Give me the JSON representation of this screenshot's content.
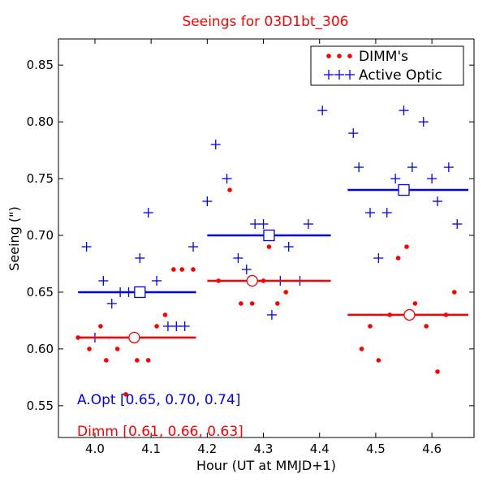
{
  "chart_data": {
    "type": "scatter",
    "title": "Seeings for 03D1bt_306",
    "xlabel": "Hour (UT at MMJD+1)",
    "ylabel": "Seeing (\")",
    "xlim": [
      3.935,
      4.675
    ],
    "ylim": [
      0.522,
      0.873
    ],
    "x_ticks": [
      "4.0",
      "4.1",
      "4.2",
      "4.3",
      "4.4",
      "4.5",
      "4.6"
    ],
    "y_ticks": [
      "0.55",
      "0.60",
      "0.65",
      "0.70",
      "0.75",
      "0.80",
      "0.85"
    ],
    "grid": false,
    "legend_position": "top-right",
    "colors": {
      "dimm": "#ff0000",
      "active_optic": "#0000ff"
    },
    "series": [
      {
        "name": "DIMM's",
        "marker": "dot",
        "color": "#ff0000",
        "points": [
          [
            3.97,
            0.61
          ],
          [
            3.99,
            0.6
          ],
          [
            4.01,
            0.62
          ],
          [
            4.02,
            0.59
          ],
          [
            4.04,
            0.6
          ],
          [
            4.055,
            0.56
          ],
          [
            4.075,
            0.59
          ],
          [
            4.095,
            0.59
          ],
          [
            4.11,
            0.62
          ],
          [
            4.125,
            0.63
          ],
          [
            4.14,
            0.67
          ],
          [
            4.155,
            0.67
          ],
          [
            4.175,
            0.67
          ],
          [
            4.22,
            0.66
          ],
          [
            4.24,
            0.74
          ],
          [
            4.26,
            0.64
          ],
          [
            4.28,
            0.64
          ],
          [
            4.3,
            0.66
          ],
          [
            4.31,
            0.69
          ],
          [
            4.325,
            0.64
          ],
          [
            4.34,
            0.65
          ],
          [
            4.475,
            0.6
          ],
          [
            4.49,
            0.62
          ],
          [
            4.505,
            0.59
          ],
          [
            4.525,
            0.63
          ],
          [
            4.54,
            0.68
          ],
          [
            4.555,
            0.69
          ],
          [
            4.57,
            0.64
          ],
          [
            4.59,
            0.62
          ],
          [
            4.61,
            0.58
          ],
          [
            4.625,
            0.63
          ],
          [
            4.64,
            0.65
          ]
        ]
      },
      {
        "name": "Active Optic",
        "marker": "plus",
        "color": "#0000ff",
        "points": [
          [
            3.985,
            0.69
          ],
          [
            4.0,
            0.61
          ],
          [
            4.015,
            0.66
          ],
          [
            4.03,
            0.64
          ],
          [
            4.045,
            0.65
          ],
          [
            4.06,
            0.65
          ],
          [
            4.08,
            0.68
          ],
          [
            4.095,
            0.72
          ],
          [
            4.11,
            0.66
          ],
          [
            4.13,
            0.62
          ],
          [
            4.145,
            0.62
          ],
          [
            4.16,
            0.62
          ],
          [
            4.175,
            0.69
          ],
          [
            4.2,
            0.73
          ],
          [
            4.215,
            0.78
          ],
          [
            4.235,
            0.75
          ],
          [
            4.255,
            0.68
          ],
          [
            4.27,
            0.67
          ],
          [
            4.285,
            0.71
          ],
          [
            4.3,
            0.71
          ],
          [
            4.315,
            0.63
          ],
          [
            4.33,
            0.66
          ],
          [
            4.345,
            0.69
          ],
          [
            4.365,
            0.66
          ],
          [
            4.38,
            0.71
          ],
          [
            4.405,
            0.81
          ],
          [
            4.46,
            0.79
          ],
          [
            4.47,
            0.76
          ],
          [
            4.49,
            0.72
          ],
          [
            4.505,
            0.68
          ],
          [
            4.52,
            0.72
          ],
          [
            4.535,
            0.75
          ],
          [
            4.55,
            0.81
          ],
          [
            4.565,
            0.76
          ],
          [
            4.585,
            0.8
          ],
          [
            4.6,
            0.75
          ],
          [
            4.61,
            0.73
          ],
          [
            4.63,
            0.76
          ],
          [
            4.645,
            0.71
          ]
        ]
      }
    ],
    "means": [
      {
        "series": "Active Optic",
        "color": "#0000ff",
        "marker": "square",
        "segments": [
          {
            "x_start": 3.97,
            "x_end": 4.18,
            "x": 4.08,
            "y": 0.65
          },
          {
            "x_start": 4.2,
            "x_end": 4.42,
            "x": 4.31,
            "y": 0.7
          },
          {
            "x_start": 4.45,
            "x_end": 4.665,
            "x": 4.55,
            "y": 0.74
          }
        ]
      },
      {
        "series": "DIMM's",
        "color": "#ff0000",
        "marker": "circle",
        "segments": [
          {
            "x_start": 3.97,
            "x_end": 4.18,
            "x": 4.07,
            "y": 0.61
          },
          {
            "x_start": 4.2,
            "x_end": 4.42,
            "x": 4.28,
            "y": 0.66
          },
          {
            "x_start": 4.45,
            "x_end": 4.665,
            "x": 4.56,
            "y": 0.63
          }
        ]
      }
    ],
    "annotations": [
      {
        "text": "A.Opt [0.65, 0.70, 0.74]",
        "color": "#0000ff"
      },
      {
        "text": "Dimm [0.61, 0.66, 0.63]",
        "color": "#ff0000"
      }
    ]
  }
}
